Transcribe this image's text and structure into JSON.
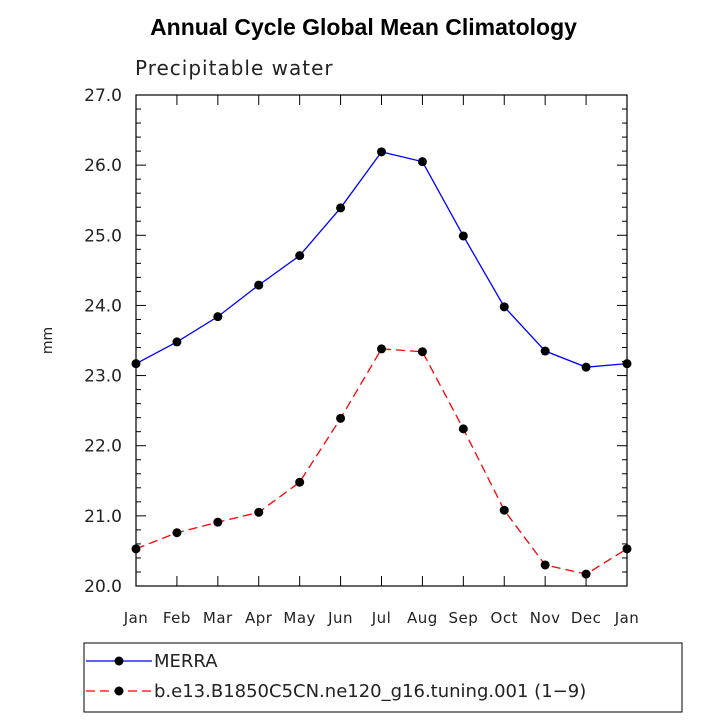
{
  "chart_data": {
    "type": "line",
    "title": "Annual Cycle Global Mean Climatology",
    "subtitle": "Precipitable water",
    "xlabel": "",
    "ylabel": "mm",
    "categories": [
      "Jan",
      "Feb",
      "Mar",
      "Apr",
      "May",
      "Jun",
      "Jul",
      "Aug",
      "Sep",
      "Oct",
      "Nov",
      "Dec",
      "Jan"
    ],
    "ylim": [
      20.0,
      27.0
    ],
    "yticks": [
      "20.0",
      "21.0",
      "22.0",
      "23.0",
      "24.0",
      "25.0",
      "26.0",
      "27.0"
    ],
    "series": [
      {
        "name": "MERRA",
        "color": "#0000ff",
        "style": "solid",
        "values": [
          23.17,
          23.48,
          23.84,
          24.29,
          24.71,
          25.39,
          26.19,
          26.05,
          24.99,
          23.98,
          23.35,
          23.12,
          23.17
        ]
      },
      {
        "name": "b.e13.B1850C5CN.ne120_g16.tuning.001 (1−9)",
        "color": "#ff0000",
        "style": "dashed",
        "values": [
          20.53,
          20.76,
          20.91,
          21.05,
          21.48,
          22.39,
          23.38,
          23.34,
          22.24,
          21.08,
          20.3,
          20.17,
          20.53
        ]
      }
    ],
    "legend_position": "bottom",
    "grid": false
  }
}
